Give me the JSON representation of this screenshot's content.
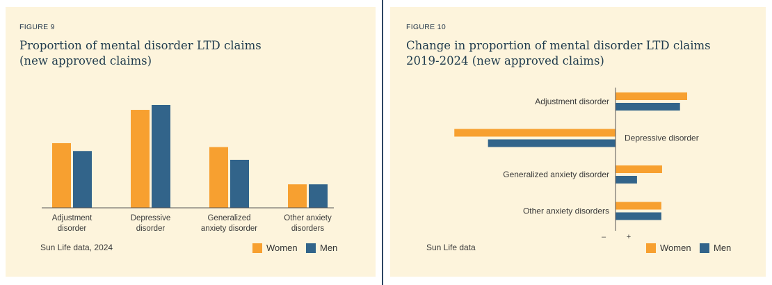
{
  "colors": {
    "women": "#f7a030",
    "men": "#32648a",
    "panel_bg": "#fdf4dc",
    "axis": "#555555"
  },
  "figure9": {
    "label": "FIGURE 9",
    "title_lines": [
      "Proportion of mental disorder LTD claims",
      "(new approved claims)"
    ],
    "source": "Sun Life data, 2024",
    "legend": {
      "women": "Women",
      "men": "Men"
    },
    "chart_data": {
      "type": "bar",
      "orientation": "vertical",
      "categories": [
        [
          "Adjustment",
          "disorder"
        ],
        [
          "Depressive",
          "disorder"
        ],
        [
          "Generalized",
          "anxiety disorder"
        ],
        [
          "Other anxiety",
          "disorders"
        ]
      ],
      "series": [
        {
          "name": "Women",
          "values": [
            0.66,
            1.0,
            0.62,
            0.24
          ]
        },
        {
          "name": "Men",
          "values": [
            0.58,
            1.05,
            0.49,
            0.24
          ]
        }
      ],
      "ylim": [
        0,
        1.05
      ],
      "y_axis_labels": "none",
      "grid": false,
      "legend_position": "bottom-right"
    }
  },
  "figure10": {
    "label": "FIGURE 10",
    "title_lines": [
      "Change in proportion of mental disorder LTD claims",
      "2019-2024 (new approved claims)"
    ],
    "source": "Sun Life data",
    "legend": {
      "women": "Women",
      "men": "Men"
    },
    "axis_ticks": {
      "negative": "–",
      "positive": "+"
    },
    "chart_data": {
      "type": "bar",
      "orientation": "horizontal",
      "categories": [
        "Adjustment disorder",
        "Depressive disorder",
        "Generalized anxiety disorder",
        "Other anxiety disorders"
      ],
      "series": [
        {
          "name": "Women",
          "values": [
            1.0,
            -2.25,
            0.65,
            0.64
          ]
        },
        {
          "name": "Men",
          "values": [
            0.9,
            -1.78,
            0.3,
            0.64
          ]
        }
      ],
      "xlim": [
        -2.4,
        1.2
      ],
      "x_axis_labels": [
        "–",
        "+"
      ],
      "grid": false,
      "legend_position": "bottom-right"
    }
  }
}
